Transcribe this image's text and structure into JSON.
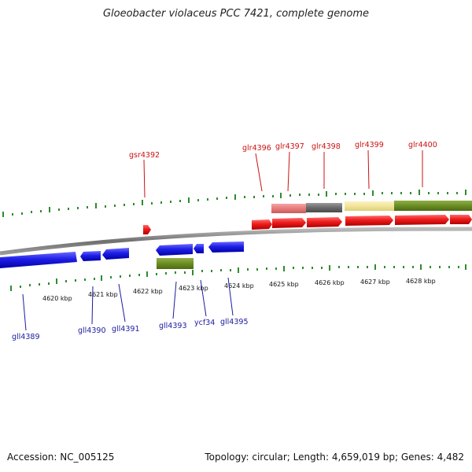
{
  "title": "Gloeobacter violaceus PCC 7421, complete genome",
  "footer": {
    "accession": "Accession: NC_005125",
    "summary": "Topology: circular; Length: 4,659,019 bp; Genes: 4,482"
  },
  "colors": {
    "forward_gene": "#ee1c1c",
    "reverse_gene": "#1e1ee6",
    "forward_label": "#cc1111",
    "reverse_label": "#1a1aa0",
    "tick": "#2e8b2e",
    "backbone": "#8a8a8a"
  },
  "kbp_labels": [
    "4620 kbp",
    "4621 kbp",
    "4622 kbp",
    "4623 kbp",
    "4624 kbp",
    "4625 kbp",
    "4626 kbp",
    "4627 kbp",
    "4628 kbp"
  ],
  "forward_genes": [
    {
      "name": "gsr4392"
    },
    {
      "name": "glr4396"
    },
    {
      "name": "glr4397"
    },
    {
      "name": "glr4398"
    },
    {
      "name": "glr4399"
    },
    {
      "name": "glr4400"
    }
  ],
  "reverse_genes": [
    {
      "name": "gll4389"
    },
    {
      "name": "gll4390"
    },
    {
      "name": "gll4391"
    },
    {
      "name": "gll4393"
    },
    {
      "name": "ycf34"
    },
    {
      "name": "gll4395"
    }
  ]
}
